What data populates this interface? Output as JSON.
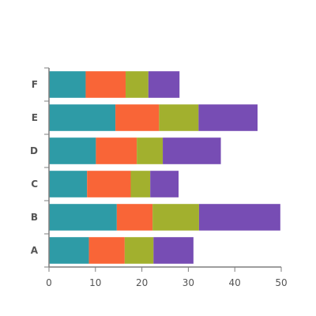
{
  "chart_data": {
    "type": "bar",
    "orientation": "horizontal",
    "stacked": true,
    "title": "",
    "xlabel": "",
    "ylabel": "",
    "categories": [
      "A",
      "B",
      "C",
      "D",
      "E",
      "F"
    ],
    "xlim": [
      0,
      50
    ],
    "x_ticks": [
      0,
      10,
      20,
      30,
      40,
      50
    ],
    "grid": false,
    "legend": "none",
    "series": [
      {
        "color": "#2e9ba6",
        "values": [
          8.6,
          14.6,
          8.2,
          10.1,
          14.3,
          7.9
        ]
      },
      {
        "color": "#f96537",
        "values": [
          7.7,
          7.7,
          9.4,
          8.8,
          9.4,
          8.6
        ]
      },
      {
        "color": "#a2b02e",
        "values": [
          6.2,
          10.0,
          4.2,
          5.6,
          8.5,
          4.9
        ]
      },
      {
        "color": "#774db4",
        "values": [
          8.6,
          17.5,
          6.1,
          12.5,
          12.7,
          6.7
        ]
      }
    ]
  }
}
